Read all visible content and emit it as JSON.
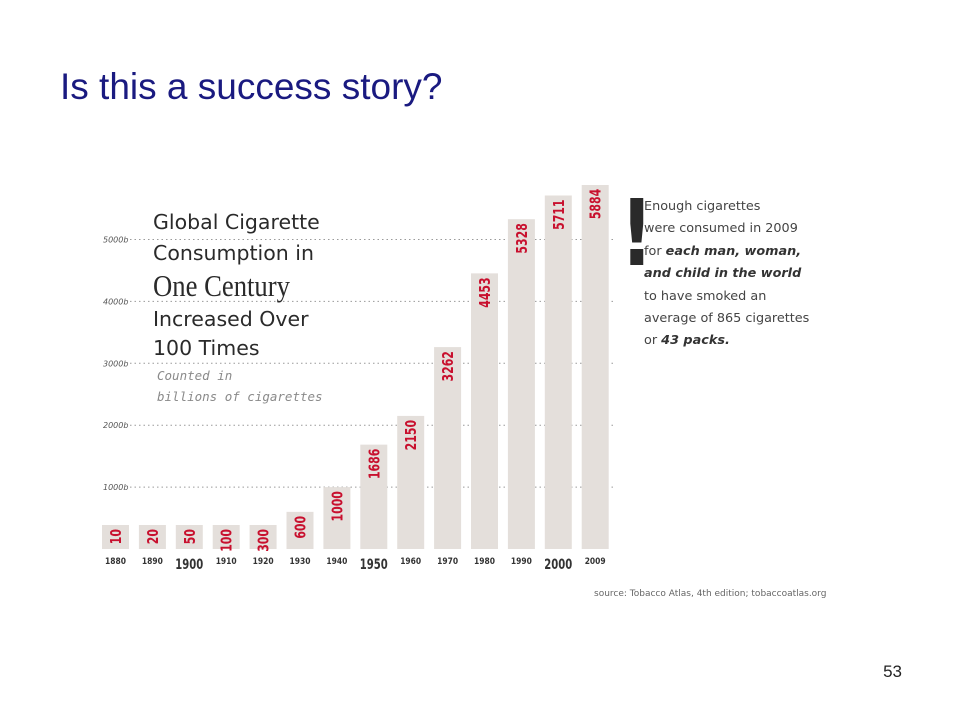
{
  "slide": {
    "title": "Is this a success story?",
    "page_number": "53"
  },
  "chart_data": {
    "type": "bar",
    "title_lines": [
      "Global Cigarette",
      "Consumption in",
      "One Century",
      "Increased Over",
      "100 Times"
    ],
    "subtitle_lines": [
      "Counted in",
      "billions of cigarettes"
    ],
    "categories": [
      "1880",
      "1890",
      "1900",
      "1910",
      "1920",
      "1930",
      "1940",
      "1950",
      "1960",
      "1970",
      "1980",
      "1990",
      "2000",
      "2009"
    ],
    "emphasized_categories": [
      "1900",
      "1950",
      "2000"
    ],
    "values": [
      10,
      20,
      50,
      100,
      300,
      600,
      1000,
      1686,
      2150,
      3262,
      4453,
      5328,
      5711,
      5884
    ],
    "y_ticks": [
      {
        "value": 1000,
        "label": "1000b"
      },
      {
        "value": 2000,
        "label": "2000b"
      },
      {
        "value": 3000,
        "label": "3000b"
      },
      {
        "value": 4000,
        "label": "4000b"
      },
      {
        "value": 5000,
        "label": "5000b"
      }
    ],
    "ylim": [
      0,
      6000
    ],
    "grid": "dotted horizontal",
    "colors": {
      "bar": "#e4dfdb",
      "value_label": "#c8102e",
      "axis_text": "#333333"
    },
    "annotation": {
      "mark": "!",
      "lines": [
        [
          {
            "t": "Enough cigarettes",
            "b": false
          }
        ],
        [
          {
            "t": "were consumed in 2009",
            "b": false
          }
        ],
        [
          {
            "t": "for ",
            "b": false
          },
          {
            "t": "each man, woman,",
            "b": true
          }
        ],
        [
          {
            "t": "and child in the world",
            "b": true
          }
        ],
        [
          {
            "t": "to have smoked an",
            "b": false
          }
        ],
        [
          {
            "t": "average of 865 cigarettes",
            "b": false
          }
        ],
        [
          {
            "t": "or ",
            "b": false
          },
          {
            "t": "43 packs.",
            "b": true
          }
        ]
      ]
    },
    "source": "source: Tobacco Atlas, 4th edition; tobaccoatlas.org"
  }
}
